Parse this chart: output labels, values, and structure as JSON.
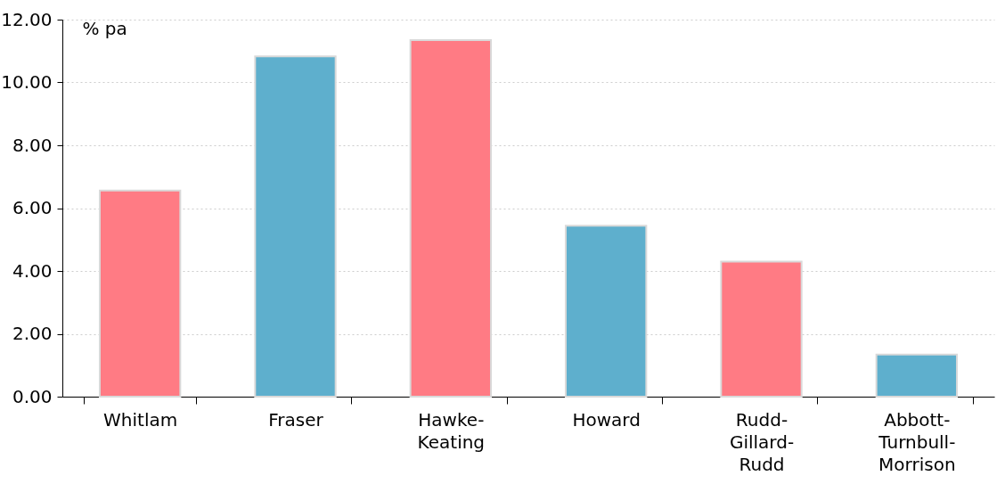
{
  "chart_data": {
    "type": "bar",
    "ylabel": "% pa",
    "categories": [
      "Whitlam",
      "Fraser",
      "Hawke-Keating",
      "Howard",
      "Rudd-Gillard-Rudd",
      "Abbott-Turnbull-Morrison"
    ],
    "values": [
      6.56,
      10.83,
      11.35,
      5.44,
      4.3,
      1.34
    ],
    "colors": [
      "#ff7b84",
      "#5eafcd",
      "#ff7b84",
      "#5eafcd",
      "#ff7b84",
      "#5eafcd"
    ],
    "ylim": [
      0,
      12
    ],
    "yticks": [
      {
        "value": 0,
        "label": "0.00"
      },
      {
        "value": 2,
        "label": "2.00"
      },
      {
        "value": 4,
        "label": "4.00"
      },
      {
        "value": 6,
        "label": "6.00"
      },
      {
        "value": 8,
        "label": "8.00"
      },
      {
        "value": 10,
        "label": "10.00"
      },
      {
        "value": 12,
        "label": "12.00"
      }
    ],
    "grid": "y"
  }
}
